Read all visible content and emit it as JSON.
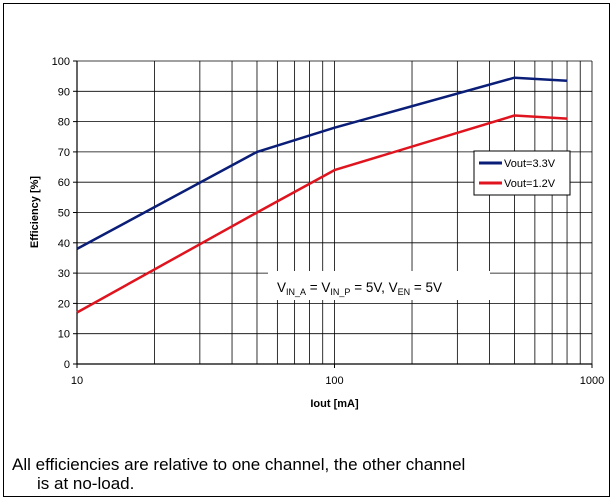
{
  "chart_data": {
    "type": "line",
    "xlabel": "Iout [mA]",
    "ylabel": "Efficiency [%]",
    "x_scale": "log",
    "xlim": [
      10,
      1000
    ],
    "ylim": [
      0,
      100
    ],
    "x_ticks": [
      10,
      100,
      1000
    ],
    "y_ticks": [
      0,
      10,
      20,
      30,
      40,
      50,
      60,
      70,
      80,
      90,
      100
    ],
    "grid": true,
    "legend_position": "right",
    "series": [
      {
        "name": "Vout=3.3V",
        "color": "#0a1e78",
        "x": [
          10,
          50,
          100,
          500,
          800
        ],
        "y": [
          38,
          70,
          78,
          94.5,
          93.5
        ]
      },
      {
        "name": "Vout=1.2V",
        "color": "#e0141e",
        "x": [
          10,
          50,
          100,
          500,
          800
        ],
        "y": [
          17,
          50,
          64,
          82,
          81
        ]
      }
    ],
    "annotation": {
      "v1": "V",
      "v1_sub": "IN_A",
      "eq1": " = V",
      "v2_sub": "IN_P",
      "eq2": " = 5V,  V",
      "v3_sub": "EN",
      "eq3": " = 5V"
    }
  },
  "footnote": {
    "line1": "All efficiencies are relative to one channel, the other channel",
    "line2": "is at no-load."
  }
}
